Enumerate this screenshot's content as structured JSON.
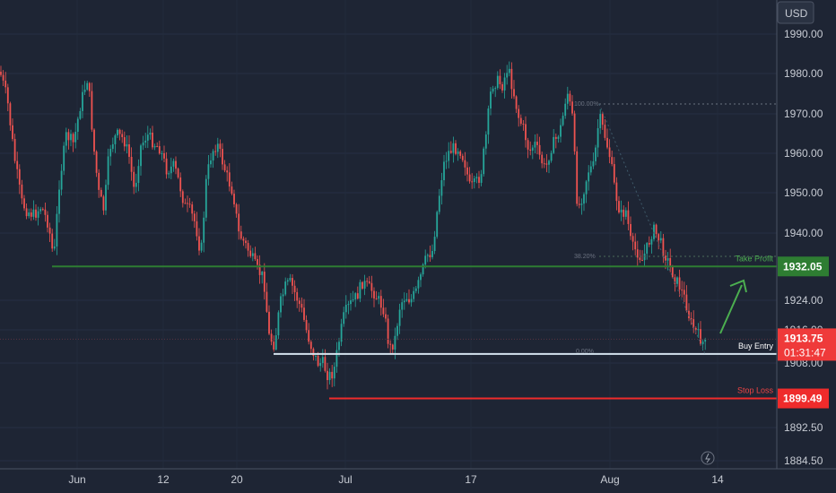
{
  "currency": "USD",
  "chart_data": {
    "type": "candlestick",
    "y_axis": {
      "ticks": [
        "1990.00",
        "1980.00",
        "1970.00",
        "1960.00",
        "1950.00",
        "1940.00",
        "1924.00",
        "1916.00",
        "1908.00",
        "1892.50",
        "1884.50"
      ],
      "range": [
        1884.5,
        1995
      ]
    },
    "x_axis": {
      "ticks": [
        "Jun",
        "12",
        "20",
        "Jul",
        "17",
        "Aug",
        "14"
      ]
    },
    "levels": [
      {
        "name": "Take Profit",
        "value": 1932.05,
        "value_label": "1932.05",
        "color": "#2e7d32"
      },
      {
        "name": "Buy Entry",
        "value": 1910.2,
        "value_label": "",
        "color": "#d6e4ef"
      },
      {
        "name": "Stop Loss",
        "value": 1899.49,
        "value_label": "1899.49",
        "color": "#ef2b2b"
      }
    ],
    "current_price": {
      "value": 1913.75,
      "label": "1913.75",
      "countdown": "01:31:47",
      "color": "#ef3a3a"
    },
    "fib_labels": [
      "100.00%",
      "38.20%",
      "0.00%"
    ],
    "green_color": "#26a69a",
    "red_color": "#ef5350"
  }
}
